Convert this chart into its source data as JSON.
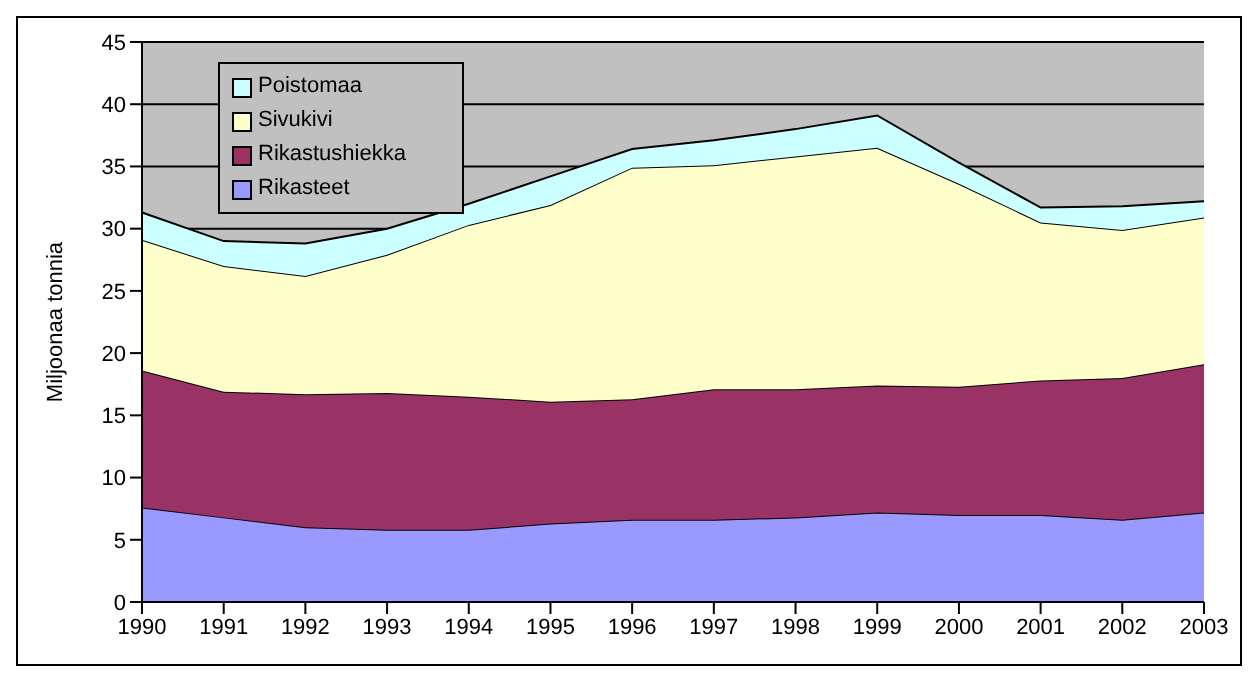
{
  "chart_data": {
    "type": "area",
    "stacked": true,
    "ylabel": "Miljoonaa tonnia",
    "categories": [
      "1990",
      "1991",
      "1992",
      "1993",
      "1994",
      "1995",
      "1996",
      "1997",
      "1998",
      "1999",
      "2000",
      "2001",
      "2002",
      "2003"
    ],
    "series": [
      {
        "name": "Rikasteet",
        "color": "#9999ff",
        "values": [
          7.6,
          6.8,
          6.0,
          5.8,
          5.8,
          6.3,
          6.6,
          6.6,
          6.8,
          7.2,
          7.0,
          7.0,
          6.6,
          7.2
        ]
      },
      {
        "name": "Rikastushiekka",
        "color": "#993366",
        "values": [
          11.0,
          10.1,
          10.7,
          11.0,
          10.7,
          9.8,
          9.7,
          10.5,
          10.3,
          10.2,
          10.3,
          10.8,
          11.4,
          11.9
        ]
      },
      {
        "name": "Sivukivi",
        "color": "#ffffcc",
        "values": [
          10.5,
          10.1,
          9.5,
          11.1,
          13.8,
          15.8,
          18.6,
          18.0,
          18.7,
          19.1,
          16.3,
          12.7,
          11.9,
          11.8
        ]
      },
      {
        "name": "Poistomaa",
        "color": "#ccffff",
        "values": [
          2.2,
          2.0,
          2.6,
          2.1,
          1.7,
          2.3,
          1.5,
          2.0,
          2.2,
          2.6,
          1.7,
          1.2,
          1.9,
          1.3
        ]
      }
    ],
    "ylim": [
      0,
      45
    ],
    "yticks": [
      0,
      5,
      10,
      15,
      20,
      25,
      30,
      35,
      40,
      45
    ],
    "grid": "y",
    "legend": "top left"
  }
}
